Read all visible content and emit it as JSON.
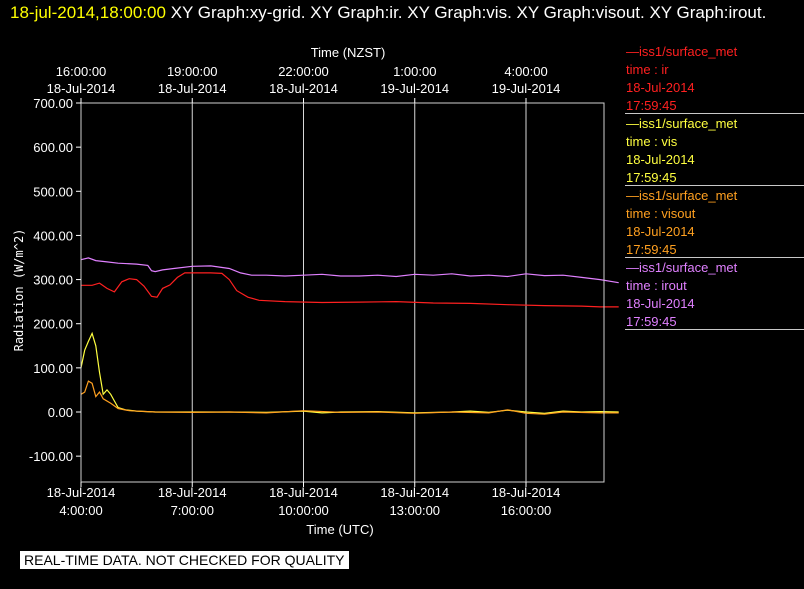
{
  "header": {
    "timestamp": "18-jul-2014,18:00:00",
    "title": "XY Graph:xy-grid.  XY Graph:ir.  XY Graph:vis.  XY Graph:visout.  XY Graph:irout."
  },
  "legend": [
    {
      "series": "—iss1/surface_met",
      "field": "time : ir",
      "date": "18-Jul-2014",
      "time": "17:59:45",
      "color": "#ff2020"
    },
    {
      "series": "—iss1/surface_met",
      "field": "time : vis",
      "date": "18-Jul-2014",
      "time": "17:59:45",
      "color": "#ffff40"
    },
    {
      "series": "—iss1/surface_met",
      "field": "time : visout",
      "date": "18-Jul-2014",
      "time": "17:59:45",
      "color": "#ffa020"
    },
    {
      "series": "—iss1/surface_met",
      "field": "time : irout",
      "date": "18-Jul-2014",
      "time": "17:59:45",
      "color": "#e080ff"
    }
  ],
  "disclaimer": "REAL-TIME DATA. NOT CHECKED FOR QUALITY",
  "chart_data": {
    "type": "line",
    "top_axis_label": "Time (NZST)",
    "xlabel": "Time (UTC)",
    "ylabel": "Radiation  (W/m^2)",
    "xlim": [
      4.0,
      18.7
    ],
    "ylim": [
      -130,
      700
    ],
    "yticks": [
      -100,
      0,
      100,
      200,
      300,
      400,
      500,
      600,
      700
    ],
    "ytick_labels": [
      "-100.00",
      "0.00",
      "100.00",
      "200.00",
      "300.00",
      "400.00",
      "500.00",
      "600.00",
      "700.00"
    ],
    "xticks_bottom": [
      {
        "x": 4,
        "date": "18-Jul-2014",
        "time": "4:00:00"
      },
      {
        "x": 7,
        "date": "18-Jul-2014",
        "time": "7:00:00"
      },
      {
        "x": 10,
        "date": "18-Jul-2014",
        "time": "10:00:00"
      },
      {
        "x": 13,
        "date": "18-Jul-2014",
        "time": "13:00:00"
      },
      {
        "x": 16,
        "date": "18-Jul-2014",
        "time": "16:00:00"
      }
    ],
    "xticks_top": [
      {
        "x": 4,
        "time": "16:00:00",
        "date": "18-Jul-2014"
      },
      {
        "x": 7,
        "time": "19:00:00",
        "date": "18-Jul-2014"
      },
      {
        "x": 10,
        "time": "22:00:00",
        "date": "18-Jul-2014"
      },
      {
        "x": 13,
        "time": "1:00:00",
        "date": "19-Jul-2014"
      },
      {
        "x": 16,
        "time": "4:00:00",
        "date": "19-Jul-2014"
      }
    ],
    "grid": "vertical",
    "series": [
      {
        "name": "ir",
        "color": "#ff2020",
        "points": [
          [
            4.0,
            287
          ],
          [
            4.3,
            287
          ],
          [
            4.5,
            292
          ],
          [
            4.7,
            280
          ],
          [
            4.9,
            272
          ],
          [
            5.1,
            295
          ],
          [
            5.3,
            302
          ],
          [
            5.5,
            300
          ],
          [
            5.7,
            285
          ],
          [
            5.9,
            262
          ],
          [
            6.05,
            260
          ],
          [
            6.2,
            280
          ],
          [
            6.4,
            288
          ],
          [
            6.6,
            305
          ],
          [
            6.8,
            315
          ],
          [
            7.0,
            315
          ],
          [
            7.5,
            315
          ],
          [
            7.8,
            314
          ],
          [
            8.0,
            300
          ],
          [
            8.2,
            275
          ],
          [
            8.5,
            260
          ],
          [
            8.8,
            253
          ],
          [
            9.5,
            250
          ],
          [
            10.5,
            248
          ],
          [
            11.5,
            249
          ],
          [
            12.5,
            250
          ],
          [
            13.5,
            247
          ],
          [
            14.5,
            246
          ],
          [
            15.5,
            243
          ],
          [
            16.5,
            241
          ],
          [
            17.5,
            240
          ],
          [
            18.0,
            238
          ],
          [
            18.5,
            238
          ]
        ]
      },
      {
        "name": "vis",
        "color": "#ffff40",
        "points": [
          [
            4.0,
            100
          ],
          [
            4.1,
            140
          ],
          [
            4.2,
            160
          ],
          [
            4.3,
            178
          ],
          [
            4.4,
            150
          ],
          [
            4.5,
            90
          ],
          [
            4.6,
            40
          ],
          [
            4.7,
            50
          ],
          [
            4.8,
            40
          ],
          [
            4.9,
            25
          ],
          [
            5.0,
            10
          ],
          [
            5.2,
            5
          ],
          [
            5.5,
            2
          ],
          [
            6.0,
            0
          ],
          [
            7.0,
            0
          ],
          [
            8.0,
            0
          ],
          [
            9.0,
            -1
          ],
          [
            10.0,
            2
          ],
          [
            10.5,
            -2
          ],
          [
            11.0,
            0
          ],
          [
            12.0,
            1
          ],
          [
            13.0,
            -2
          ],
          [
            14.0,
            0
          ],
          [
            14.5,
            2
          ],
          [
            15.0,
            -1
          ],
          [
            15.5,
            4
          ],
          [
            16.0,
            0
          ],
          [
            16.5,
            -3
          ],
          [
            17.0,
            2
          ],
          [
            17.5,
            0
          ],
          [
            18.0,
            1
          ],
          [
            18.5,
            0
          ]
        ]
      },
      {
        "name": "visout",
        "color": "#ffa020",
        "points": [
          [
            4.0,
            40
          ],
          [
            4.1,
            45
          ],
          [
            4.2,
            70
          ],
          [
            4.3,
            65
          ],
          [
            4.4,
            35
          ],
          [
            4.5,
            45
          ],
          [
            4.6,
            30
          ],
          [
            4.8,
            20
          ],
          [
            5.0,
            8
          ],
          [
            5.3,
            3
          ],
          [
            6.0,
            0
          ],
          [
            7.0,
            -1
          ],
          [
            8.0,
            0
          ],
          [
            9.0,
            -2
          ],
          [
            10.0,
            3
          ],
          [
            11.0,
            -1
          ],
          [
            12.0,
            0
          ],
          [
            13.0,
            -3
          ],
          [
            14.0,
            0
          ],
          [
            15.0,
            -2
          ],
          [
            15.5,
            5
          ],
          [
            16.0,
            -3
          ],
          [
            16.5,
            -5
          ],
          [
            17.0,
            0
          ],
          [
            18.0,
            -2
          ],
          [
            18.5,
            -2
          ]
        ]
      },
      {
        "name": "irout",
        "color": "#e080ff",
        "points": [
          [
            4.0,
            345
          ],
          [
            4.2,
            349
          ],
          [
            4.4,
            343
          ],
          [
            4.7,
            340
          ],
          [
            5.0,
            337
          ],
          [
            5.5,
            335
          ],
          [
            5.8,
            332
          ],
          [
            5.9,
            320
          ],
          [
            6.0,
            318
          ],
          [
            6.2,
            322
          ],
          [
            6.5,
            325
          ],
          [
            7.0,
            330
          ],
          [
            7.5,
            331
          ],
          [
            8.0,
            325
          ],
          [
            8.3,
            315
          ],
          [
            8.6,
            310
          ],
          [
            9.0,
            310
          ],
          [
            9.5,
            308
          ],
          [
            10.0,
            310
          ],
          [
            10.5,
            312
          ],
          [
            11.0,
            308
          ],
          [
            11.5,
            308
          ],
          [
            12.0,
            310
          ],
          [
            12.5,
            307
          ],
          [
            13.0,
            312
          ],
          [
            13.5,
            310
          ],
          [
            14.0,
            313
          ],
          [
            14.5,
            308
          ],
          [
            15.0,
            310
          ],
          [
            15.5,
            307
          ],
          [
            16.0,
            313
          ],
          [
            16.5,
            309
          ],
          [
            17.0,
            310
          ],
          [
            17.5,
            305
          ],
          [
            18.0,
            300
          ],
          [
            18.5,
            293
          ]
        ]
      }
    ]
  }
}
